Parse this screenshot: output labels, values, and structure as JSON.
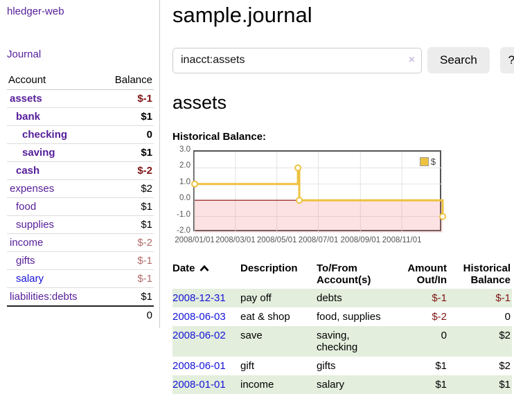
{
  "colors": {
    "accent_purple": "#551d99",
    "link_blue": "#1412d8",
    "negative": "#7f1414",
    "negative_muted": "#b26b6b",
    "row_green": "#e3eedd",
    "series_yellow": "#edc240",
    "zero_line": "#8f0e0e",
    "negative_fill": "rgba(242,122,122,0.22)",
    "grid": "#e3e3e3",
    "border": "#545454",
    "axis_text": "#545454"
  },
  "sidebar": {
    "brand": "hledger-web",
    "journal_link": "Journal",
    "table": {
      "account_header": "Account",
      "balance_header": "Balance",
      "accounts": [
        {
          "name": "assets",
          "depth": 1,
          "bold": true,
          "balance": "$-1",
          "balance_tone": "negative",
          "link_tone": "purple"
        },
        {
          "name": "bank",
          "depth": 2,
          "bold": true,
          "balance": "$1",
          "balance_tone": "positive",
          "link_tone": "purple"
        },
        {
          "name": "checking",
          "depth": 3,
          "bold": true,
          "balance": "0",
          "balance_tone": "positive",
          "link_tone": "purple"
        },
        {
          "name": "saving",
          "depth": 3,
          "bold": true,
          "balance": "$1",
          "balance_tone": "positive",
          "link_tone": "purple"
        },
        {
          "name": "cash",
          "depth": 2,
          "bold": true,
          "balance": "$-2",
          "balance_tone": "negative",
          "link_tone": "purple"
        },
        {
          "name": "expenses",
          "depth": 1,
          "bold": false,
          "balance": "$2",
          "balance_tone": "positive",
          "link_tone": "purple"
        },
        {
          "name": "food",
          "depth": 2,
          "bold": false,
          "balance": "$1",
          "balance_tone": "positive",
          "link_tone": "purple"
        },
        {
          "name": "supplies",
          "depth": 2,
          "bold": false,
          "balance": "$1",
          "balance_tone": "positive",
          "link_tone": "purple"
        },
        {
          "name": "income",
          "depth": 1,
          "bold": false,
          "balance": "$-2",
          "balance_tone": "negative-muted",
          "link_tone": "purple"
        },
        {
          "name": "gifts",
          "depth": 2,
          "bold": false,
          "balance": "$-1",
          "balance_tone": "negative-muted",
          "link_tone": "purple"
        },
        {
          "name": "salary",
          "depth": 2,
          "bold": false,
          "balance": "$-1",
          "balance_tone": "negative-muted",
          "link_tone": "blue"
        },
        {
          "name": "liabilities:debts",
          "depth": 1,
          "bold": false,
          "balance": "$1",
          "balance_tone": "positive",
          "link_tone": "purple",
          "last": true
        }
      ],
      "total": "0"
    }
  },
  "header": {
    "title": "sample.journal"
  },
  "search": {
    "value": "inacct:assets",
    "clear_icon": "×",
    "button": "Search",
    "help_button": "?"
  },
  "account_page": {
    "heading": "assets",
    "chart_label": "Historical Balance:"
  },
  "chart_data": {
    "type": "line",
    "style": "step",
    "title": "Historical Balance",
    "series": [
      {
        "name": "$",
        "color": "#edc240",
        "points": [
          [
            "2008-01-01",
            1
          ],
          [
            "2008-06-01",
            2
          ],
          [
            "2008-06-03",
            0
          ],
          [
            "2008-12-31",
            -1
          ]
        ]
      }
    ],
    "x_range": [
      "2008-01-01",
      "2008-12-31"
    ],
    "y_range": [
      -2,
      3
    ],
    "x_ticks": [
      {
        "label": "2008/01/01",
        "date": "2008-01-01"
      },
      {
        "label": "2008/03/01",
        "date": "2008-03-01"
      },
      {
        "label": "2008/05/01",
        "date": "2008-05-01"
      },
      {
        "label": "2008/07/01",
        "date": "2008-07-01"
      },
      {
        "label": "2008/09/01",
        "date": "2008-09-01"
      },
      {
        "label": "2008/11/01",
        "date": "2008-11-01"
      }
    ],
    "y_ticks": [
      3.0,
      2.0,
      1.0,
      0.0,
      -1.0,
      -2.0
    ],
    "grid": true,
    "negative_region_shaded": true,
    "legend": {
      "label": "$",
      "position": "top-right"
    }
  },
  "register": {
    "columns": {
      "date": "Date",
      "description": "Description",
      "accounts": "To/From Account(s)",
      "amount": "Amount Out/In",
      "balance": "Historical Balance"
    },
    "rows": [
      {
        "date": "2008-12-31",
        "description": "pay off",
        "accounts": "debts",
        "amount": "$-1",
        "amount_tone": "negative",
        "balance": "$-1",
        "balance_tone": "negative",
        "shaded": true
      },
      {
        "date": "2008-06-03",
        "description": "eat & shop",
        "accounts": "food, supplies",
        "amount": "$-2",
        "amount_tone": "negative",
        "balance": "0",
        "balance_tone": "positive",
        "shaded": false
      },
      {
        "date": "2008-06-02",
        "description": "save",
        "accounts": "saving, checking",
        "amount": "0",
        "amount_tone": "positive",
        "balance": "$2",
        "balance_tone": "positive",
        "shaded": true
      },
      {
        "date": "2008-06-01",
        "description": "gift",
        "accounts": "gifts",
        "amount": "$1",
        "amount_tone": "positive",
        "balance": "$2",
        "balance_tone": "positive",
        "shaded": false
      },
      {
        "date": "2008-01-01",
        "description": "income",
        "accounts": "salary",
        "amount": "$1",
        "amount_tone": "positive",
        "balance": "$1",
        "balance_tone": "positive",
        "shaded": true
      }
    ]
  }
}
